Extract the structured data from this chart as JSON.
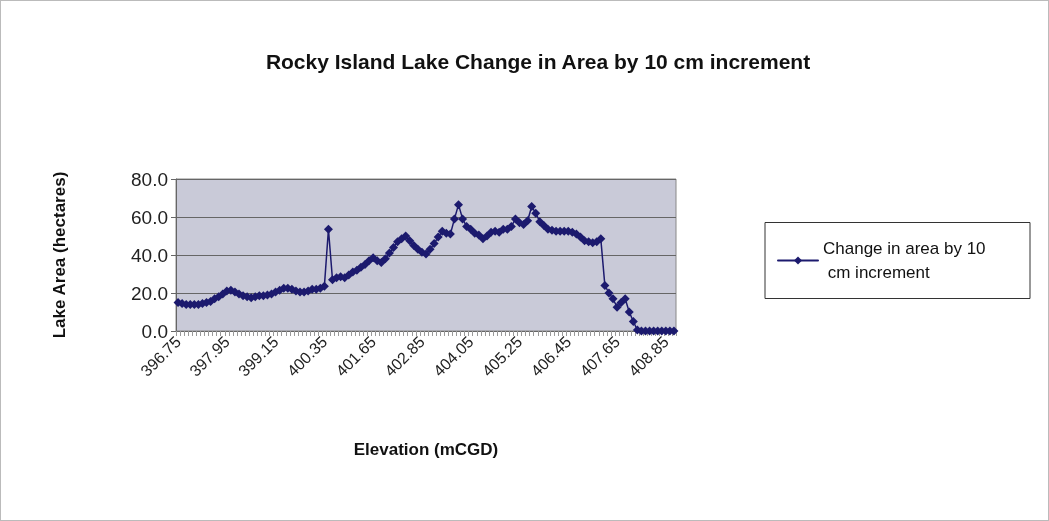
{
  "chart_data": {
    "type": "line",
    "title": "Rocky Island Lake Change in Area by 10 cm increment",
    "xlabel": "Elevation (mCGD)",
    "ylabel": "Lake Area (hectares)",
    "categories": [
      "396.75",
      null,
      null,
      null,
      null,
      null,
      null,
      null,
      null,
      null,
      null,
      null,
      "397.95",
      null,
      null,
      null,
      null,
      null,
      null,
      null,
      null,
      null,
      null,
      null,
      "399.15",
      null,
      null,
      null,
      null,
      null,
      null,
      null,
      null,
      null,
      null,
      null,
      "400.35",
      null,
      null,
      null,
      null,
      null,
      null,
      null,
      null,
      null,
      null,
      null,
      "401.65",
      null,
      null,
      null,
      null,
      null,
      null,
      null,
      null,
      null,
      null,
      null,
      "402.85",
      null,
      null,
      null,
      null,
      null,
      null,
      null,
      null,
      null,
      null,
      null,
      "404.05",
      null,
      null,
      null,
      null,
      null,
      null,
      null,
      null,
      null,
      null,
      null,
      "405.25",
      null,
      null,
      null,
      null,
      null,
      null,
      null,
      null,
      null,
      null,
      null,
      "406.45",
      null,
      null,
      null,
      null,
      null,
      null,
      null,
      null,
      null,
      null,
      null,
      "407.65",
      null,
      null,
      null,
      null,
      null,
      null,
      null,
      null,
      null,
      null,
      null,
      "408.85",
      null,
      null
    ],
    "series": [
      {
        "name": "Change in area by 10 cm increment",
        "color": "#1c1a6e",
        "values": [
          15,
          14.5,
          14,
          14,
          14,
          14,
          14.5,
          15,
          15.5,
          17,
          18,
          19.5,
          21,
          21.5,
          20.5,
          19.5,
          18.5,
          18,
          17.5,
          18,
          18.5,
          18.5,
          19,
          19.5,
          20.5,
          21.5,
          22.5,
          22.5,
          22,
          21,
          20.5,
          20.5,
          21,
          22,
          22,
          22.5,
          23.5,
          53.5,
          27,
          28,
          28.5,
          28,
          29.5,
          31,
          32,
          33.5,
          35,
          37,
          38.5,
          37,
          36,
          38,
          41,
          44,
          47,
          48.5,
          50,
          47.5,
          45,
          43,
          41.5,
          40.5,
          43,
          46,
          49.5,
          52.5,
          51.5,
          51,
          59,
          66.5,
          59,
          55,
          53.5,
          51.5,
          50.5,
          48.5,
          50,
          52,
          52.5,
          52,
          53.5,
          53.5,
          55,
          59,
          57,
          56,
          58,
          65.5,
          62,
          57.5,
          55.5,
          53.5,
          53,
          52.5,
          52.5,
          52.5,
          52.5,
          52,
          51,
          49.5,
          47.5,
          47,
          46.5,
          47,
          48.5,
          24,
          20,
          17,
          12.5,
          15,
          17,
          10,
          5,
          0.5,
          0,
          0,
          0,
          0,
          0,
          0,
          0,
          0,
          0
        ]
      }
    ],
    "ylim": [
      0,
      80
    ],
    "yticks": [
      {
        "value": 0,
        "label": "0.0"
      },
      {
        "value": 20,
        "label": "20.0"
      },
      {
        "value": 40,
        "label": "40.0"
      },
      {
        "value": 60,
        "label": "60.0"
      },
      {
        "value": 80,
        "label": "80.0"
      }
    ],
    "grid": "y",
    "legend": "right",
    "marker": "diamond",
    "line_style": "solid"
  }
}
